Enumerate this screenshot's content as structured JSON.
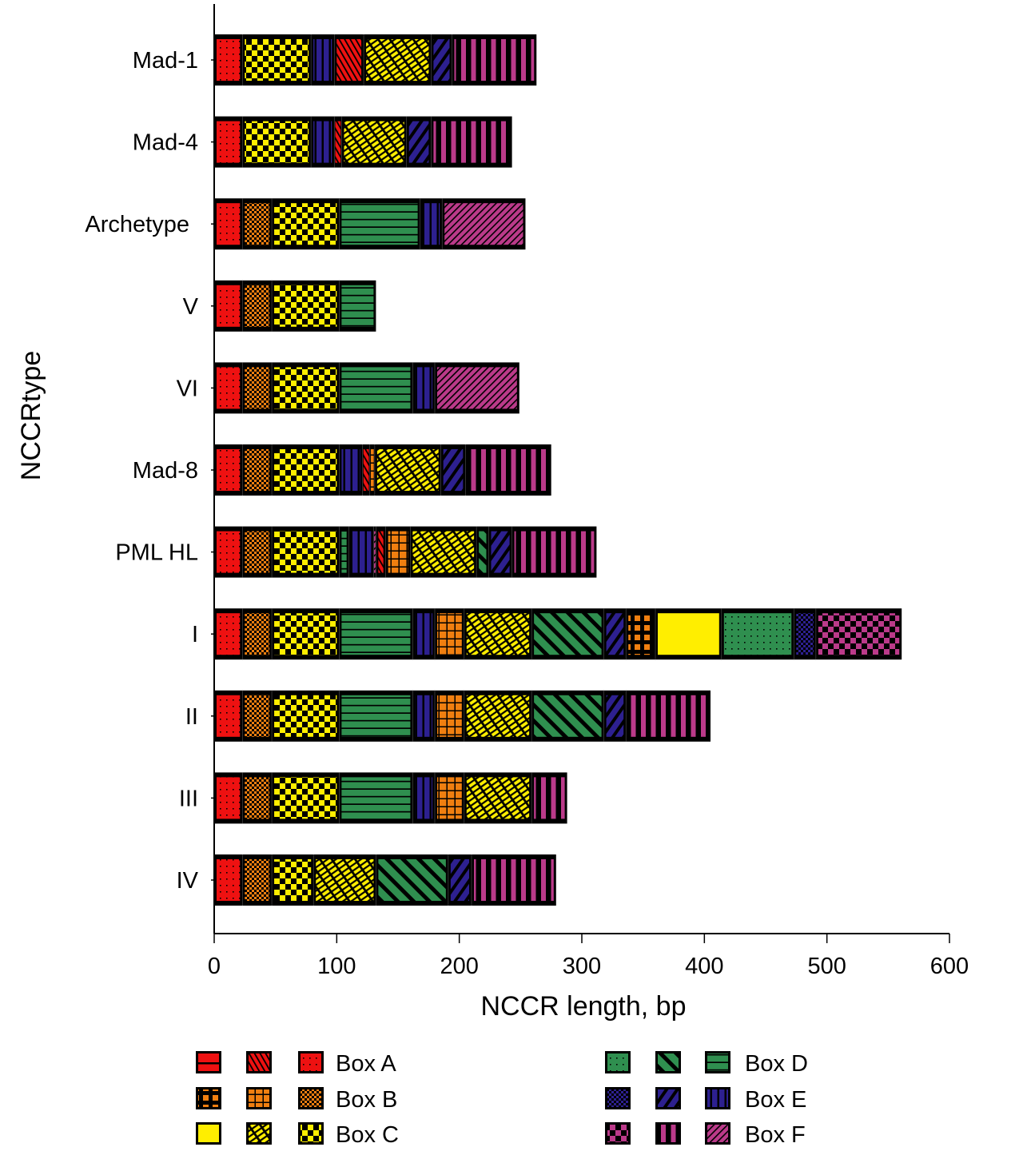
{
  "chart_data": {
    "type": "bar",
    "orientation": "horizontal",
    "stacked": true,
    "title": "",
    "xlabel": "NCCR length, bp",
    "ylabel": "NCCRtype",
    "xlim": [
      0,
      600
    ],
    "xticks": [
      0,
      100,
      200,
      300,
      400,
      500,
      600
    ],
    "grid": false,
    "legend_position": "bottom",
    "colors": {
      "A": "#ee1111",
      "B": "#f07f10",
      "C": "#ffee00",
      "D": "#2f8f4f",
      "E": "#2d2090",
      "F": "#bb3a8a"
    },
    "legend": [
      {
        "label": "Box A",
        "box": "A",
        "patterns": [
          "hbar",
          "diag-fine",
          "dots"
        ]
      },
      {
        "label": "Box B",
        "box": "B",
        "patterns": [
          "grid-big",
          "grid",
          "check-small"
        ]
      },
      {
        "label": "Box C",
        "box": "C",
        "patterns": [
          "solid",
          "brick",
          "check"
        ]
      },
      {
        "label": "Box D",
        "box": "D",
        "patterns": [
          "dots",
          "diag-wide",
          "hlines"
        ]
      },
      {
        "label": "Box E",
        "box": "E",
        "patterns": [
          "check-small",
          "diag-up",
          "vlines"
        ]
      },
      {
        "label": "Box F",
        "box": "F",
        "patterns": [
          "check",
          "vbars",
          "diag-up-fine"
        ]
      }
    ],
    "categories": [
      "Mad-1",
      "Mad-4",
      "Archetype",
      "V",
      "VI",
      "Mad-8",
      "PML HL",
      "I",
      "II",
      "III",
      "IV"
    ],
    "bars": [
      {
        "name": "Mad-1",
        "segments": [
          {
            "box": "A",
            "pattern": "dots",
            "start": 0,
            "end": 23
          },
          {
            "box": "C",
            "pattern": "check",
            "start": 23,
            "end": 79
          },
          {
            "box": "E",
            "pattern": "vlines",
            "start": 79,
            "end": 98
          },
          {
            "box": "A",
            "pattern": "diag-fine",
            "start": 98,
            "end": 122
          },
          {
            "box": "C",
            "pattern": "brick",
            "start": 122,
            "end": 177
          },
          {
            "box": "E",
            "pattern": "diag-up",
            "start": 177,
            "end": 194
          },
          {
            "box": "F",
            "pattern": "vbars",
            "start": 194,
            "end": 263
          }
        ]
      },
      {
        "name": "Mad-4",
        "segments": [
          {
            "box": "A",
            "pattern": "dots",
            "start": 0,
            "end": 23
          },
          {
            "box": "C",
            "pattern": "check",
            "start": 23,
            "end": 79
          },
          {
            "box": "E",
            "pattern": "vlines",
            "start": 79,
            "end": 98
          },
          {
            "box": "A",
            "pattern": "diag-fine",
            "start": 98,
            "end": 104
          },
          {
            "box": "C",
            "pattern": "brick",
            "start": 104,
            "end": 157
          },
          {
            "box": "E",
            "pattern": "diag-up",
            "start": 157,
            "end": 177
          },
          {
            "box": "F",
            "pattern": "vbars",
            "start": 177,
            "end": 243
          }
        ]
      },
      {
        "name": "Archetype",
        "segments": [
          {
            "box": "A",
            "pattern": "dots",
            "start": 0,
            "end": 23
          },
          {
            "box": "B",
            "pattern": "check-small",
            "start": 23,
            "end": 47
          },
          {
            "box": "C",
            "pattern": "check",
            "start": 47,
            "end": 102
          },
          {
            "box": "D",
            "pattern": "hlines",
            "start": 102,
            "end": 168
          },
          {
            "box": "E",
            "pattern": "vlines",
            "start": 168,
            "end": 186
          },
          {
            "box": "F",
            "pattern": "diag-up-fine",
            "start": 186,
            "end": 254
          }
        ]
      },
      {
        "name": "V",
        "segments": [
          {
            "box": "A",
            "pattern": "dots",
            "start": 0,
            "end": 23
          },
          {
            "box": "B",
            "pattern": "check-small",
            "start": 23,
            "end": 47
          },
          {
            "box": "C",
            "pattern": "check",
            "start": 47,
            "end": 102
          },
          {
            "box": "D",
            "pattern": "hlines",
            "start": 102,
            "end": 132
          }
        ]
      },
      {
        "name": "VI",
        "segments": [
          {
            "box": "A",
            "pattern": "dots",
            "start": 0,
            "end": 23
          },
          {
            "box": "B",
            "pattern": "check-small",
            "start": 23,
            "end": 47
          },
          {
            "box": "C",
            "pattern": "check",
            "start": 47,
            "end": 102
          },
          {
            "box": "D",
            "pattern": "hlines",
            "start": 102,
            "end": 162
          },
          {
            "box": "E",
            "pattern": "vlines",
            "start": 162,
            "end": 180
          },
          {
            "box": "F",
            "pattern": "diag-up-fine",
            "start": 180,
            "end": 249
          }
        ]
      },
      {
        "name": "Mad-8",
        "segments": [
          {
            "box": "A",
            "pattern": "dots",
            "start": 0,
            "end": 23
          },
          {
            "box": "B",
            "pattern": "check-small",
            "start": 23,
            "end": 47
          },
          {
            "box": "C",
            "pattern": "check",
            "start": 47,
            "end": 102
          },
          {
            "box": "E",
            "pattern": "vlines",
            "start": 102,
            "end": 121
          },
          {
            "box": "A",
            "pattern": "diag-fine",
            "start": 121,
            "end": 127
          },
          {
            "box": "B",
            "pattern": "grid",
            "start": 127,
            "end": 131
          },
          {
            "box": "C",
            "pattern": "brick",
            "start": 131,
            "end": 185
          },
          {
            "box": "E",
            "pattern": "diag-up",
            "start": 185,
            "end": 205
          },
          {
            "box": "F",
            "pattern": "vbars",
            "start": 205,
            "end": 275
          }
        ]
      },
      {
        "name": "PML HL",
        "segments": [
          {
            "box": "A",
            "pattern": "dots",
            "start": 0,
            "end": 23
          },
          {
            "box": "B",
            "pattern": "check-small",
            "start": 23,
            "end": 47
          },
          {
            "box": "C",
            "pattern": "check",
            "start": 47,
            "end": 102
          },
          {
            "box": "D",
            "pattern": "hlines",
            "start": 102,
            "end": 110
          },
          {
            "box": "E",
            "pattern": "vlines",
            "start": 110,
            "end": 130
          },
          {
            "box": "F",
            "pattern": "diag-up-fine",
            "start": 130,
            "end": 132
          },
          {
            "box": "A",
            "pattern": "diag-fine",
            "start": 132,
            "end": 140
          },
          {
            "box": "B",
            "pattern": "grid",
            "start": 140,
            "end": 160
          },
          {
            "box": "C",
            "pattern": "brick",
            "start": 160,
            "end": 214
          },
          {
            "box": "D",
            "pattern": "diag-wide",
            "start": 214,
            "end": 224
          },
          {
            "box": "E",
            "pattern": "diag-up",
            "start": 224,
            "end": 243
          },
          {
            "box": "F",
            "pattern": "vbars",
            "start": 243,
            "end": 312
          }
        ]
      },
      {
        "name": "I",
        "segments": [
          {
            "box": "A",
            "pattern": "dots",
            "start": 0,
            "end": 23
          },
          {
            "box": "B",
            "pattern": "check-small",
            "start": 23,
            "end": 47
          },
          {
            "box": "C",
            "pattern": "check",
            "start": 47,
            "end": 102
          },
          {
            "box": "D",
            "pattern": "hlines",
            "start": 102,
            "end": 162
          },
          {
            "box": "E",
            "pattern": "vlines",
            "start": 162,
            "end": 180
          },
          {
            "box": "B",
            "pattern": "grid",
            "start": 180,
            "end": 204
          },
          {
            "box": "C",
            "pattern": "brick",
            "start": 204,
            "end": 259
          },
          {
            "box": "D",
            "pattern": "diag-wide",
            "start": 259,
            "end": 318
          },
          {
            "box": "E",
            "pattern": "diag-up",
            "start": 318,
            "end": 336
          },
          {
            "box": "B",
            "pattern": "grid-big",
            "start": 336,
            "end": 360
          },
          {
            "box": "C",
            "pattern": "solid",
            "start": 360,
            "end": 414
          },
          {
            "box": "D",
            "pattern": "dots",
            "start": 414,
            "end": 473
          },
          {
            "box": "E",
            "pattern": "check-small",
            "start": 473,
            "end": 491
          },
          {
            "box": "F",
            "pattern": "check",
            "start": 491,
            "end": 561
          }
        ]
      },
      {
        "name": "II",
        "segments": [
          {
            "box": "A",
            "pattern": "dots",
            "start": 0,
            "end": 23
          },
          {
            "box": "B",
            "pattern": "check-small",
            "start": 23,
            "end": 47
          },
          {
            "box": "C",
            "pattern": "check",
            "start": 47,
            "end": 102
          },
          {
            "box": "D",
            "pattern": "hlines",
            "start": 102,
            "end": 162
          },
          {
            "box": "E",
            "pattern": "vlines",
            "start": 162,
            "end": 180
          },
          {
            "box": "B",
            "pattern": "grid",
            "start": 180,
            "end": 204
          },
          {
            "box": "C",
            "pattern": "brick",
            "start": 204,
            "end": 259
          },
          {
            "box": "D",
            "pattern": "diag-wide",
            "start": 259,
            "end": 318
          },
          {
            "box": "E",
            "pattern": "diag-up",
            "start": 318,
            "end": 336
          },
          {
            "box": "F",
            "pattern": "vbars",
            "start": 336,
            "end": 405
          }
        ]
      },
      {
        "name": "III",
        "segments": [
          {
            "box": "A",
            "pattern": "dots",
            "start": 0,
            "end": 23
          },
          {
            "box": "B",
            "pattern": "check-small",
            "start": 23,
            "end": 47
          },
          {
            "box": "C",
            "pattern": "check",
            "start": 47,
            "end": 102
          },
          {
            "box": "D",
            "pattern": "hlines",
            "start": 102,
            "end": 162
          },
          {
            "box": "E",
            "pattern": "vlines",
            "start": 162,
            "end": 180
          },
          {
            "box": "B",
            "pattern": "grid",
            "start": 180,
            "end": 204
          },
          {
            "box": "C",
            "pattern": "brick",
            "start": 204,
            "end": 259
          },
          {
            "box": "F",
            "pattern": "vbars",
            "start": 259,
            "end": 288
          }
        ]
      },
      {
        "name": "IV",
        "segments": [
          {
            "box": "A",
            "pattern": "dots",
            "start": 0,
            "end": 23
          },
          {
            "box": "B",
            "pattern": "check-small",
            "start": 23,
            "end": 47
          },
          {
            "box": "C",
            "pattern": "check",
            "start": 47,
            "end": 81
          },
          {
            "box": "C",
            "pattern": "brick",
            "start": 81,
            "end": 132
          },
          {
            "box": "D",
            "pattern": "diag-wide",
            "start": 132,
            "end": 191
          },
          {
            "box": "E",
            "pattern": "diag-up",
            "start": 191,
            "end": 210
          },
          {
            "box": "F",
            "pattern": "vbars",
            "start": 210,
            "end": 279
          }
        ]
      }
    ]
  }
}
